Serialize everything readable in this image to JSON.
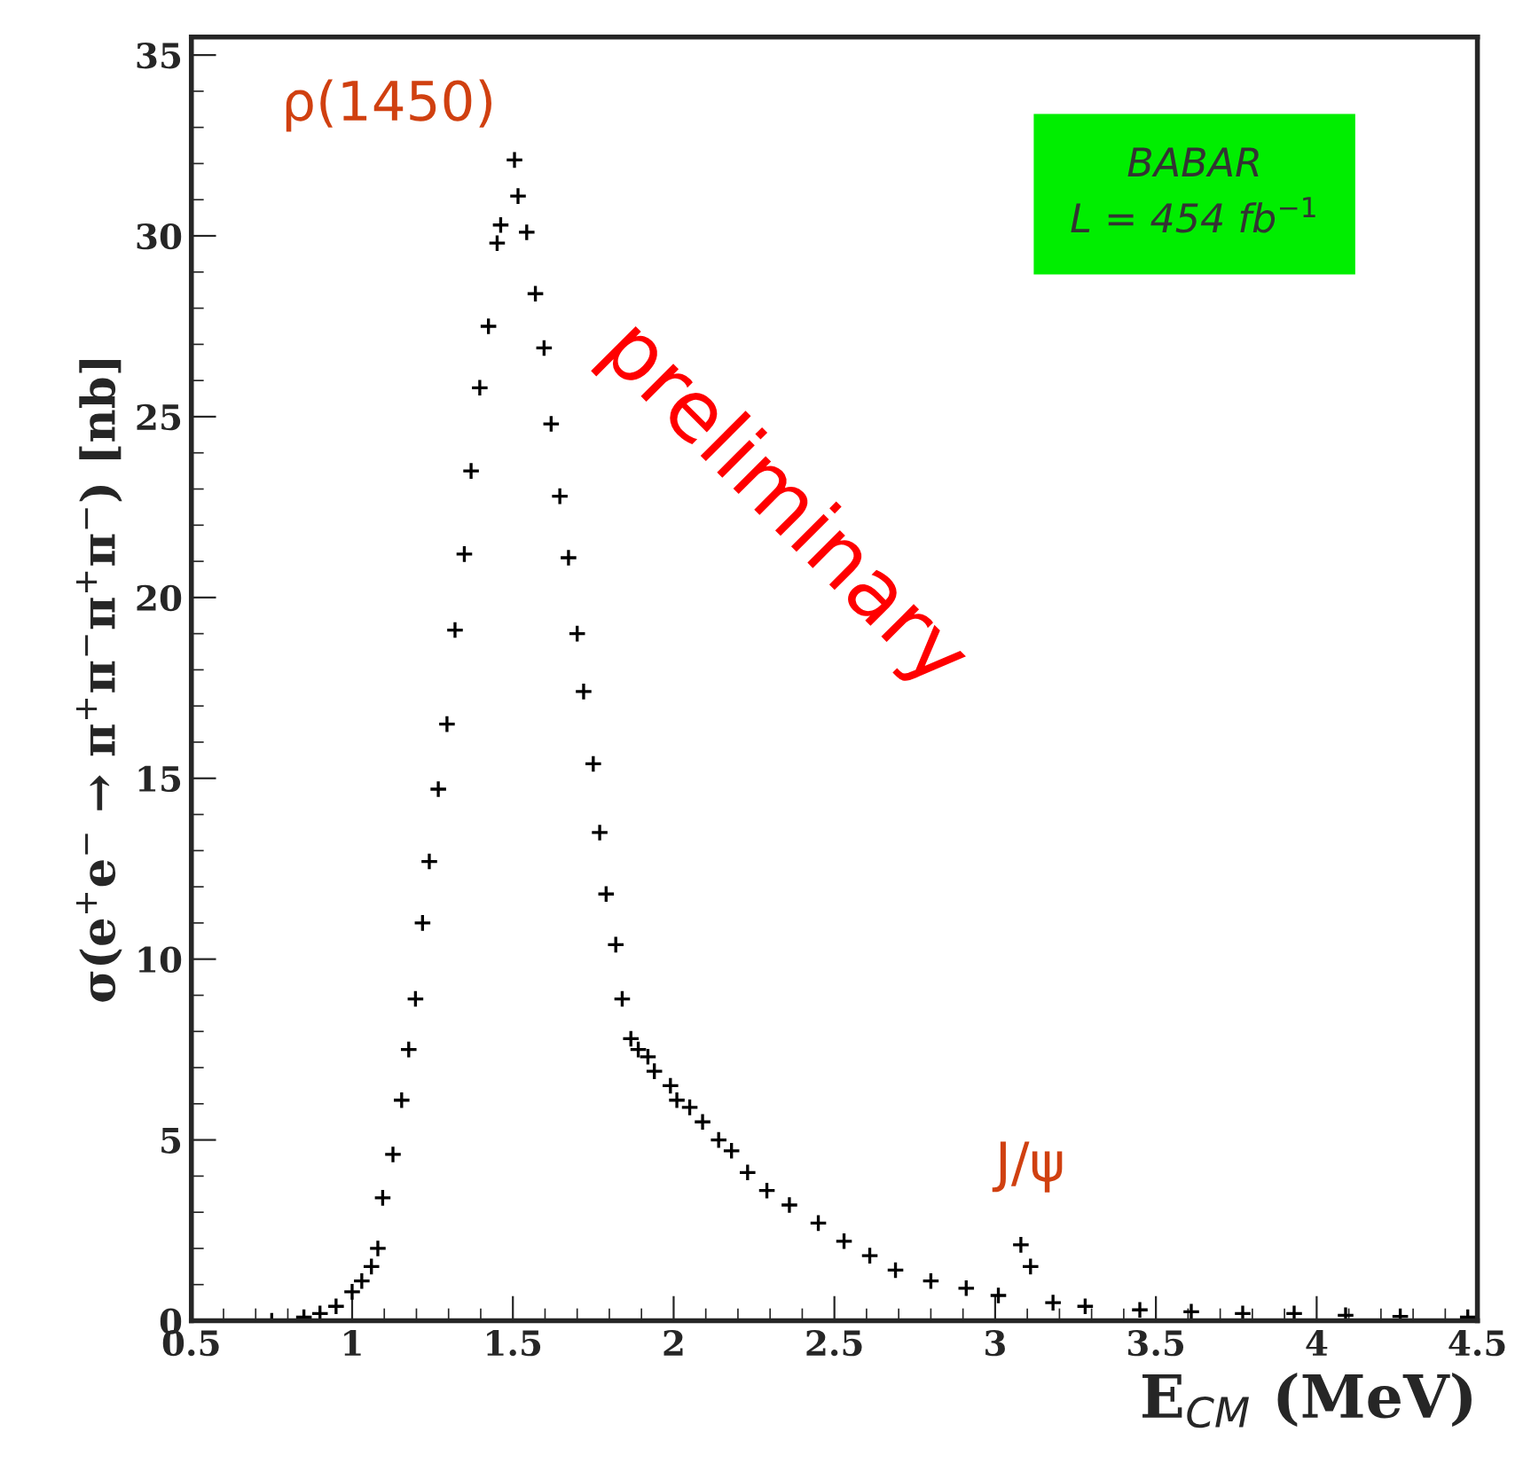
{
  "chart_data": {
    "type": "scatter",
    "xlabel": "E$_{CM}$ (MeV)",
    "ylabel": "σ(e$^{+}$e$^{−}$ → π$^{+}$π$^{−}$π$^{+}$π$^{−}$) [nb]",
    "x": [
      0.75,
      0.85,
      0.9,
      0.95,
      1.0,
      1.03,
      1.06,
      1.08,
      1.095,
      1.127,
      1.154,
      1.176,
      1.197,
      1.219,
      1.24,
      1.268,
      1.295,
      1.32,
      1.349,
      1.37,
      1.397,
      1.424,
      1.451,
      1.462,
      1.505,
      1.516,
      1.543,
      1.57,
      1.597,
      1.619,
      1.646,
      1.673,
      1.7,
      1.72,
      1.75,
      1.77,
      1.79,
      1.82,
      1.84,
      1.867,
      1.89,
      1.92,
      1.94,
      1.99,
      2.01,
      2.05,
      2.09,
      2.14,
      2.18,
      2.23,
      2.29,
      2.36,
      2.45,
      2.53,
      2.61,
      2.69,
      2.8,
      2.91,
      3.01,
      3.08,
      3.11,
      3.18,
      3.28,
      3.45,
      3.61,
      3.77,
      3.93,
      4.09,
      4.26,
      4.47
    ],
    "series": [
      {
        "color": "#000000",
        "values": [
          0.0,
          0.1,
          0.2,
          0.4,
          0.8,
          1.1,
          1.5,
          2.0,
          3.4,
          4.6,
          6.1,
          7.5,
          8.9,
          11.0,
          12.7,
          14.7,
          16.5,
          19.1,
          21.2,
          23.5,
          25.8,
          27.5,
          29.8,
          30.3,
          32.1,
          31.1,
          30.1,
          28.4,
          26.9,
          24.8,
          22.8,
          21.1,
          19.0,
          17.4,
          15.4,
          13.5,
          11.8,
          10.4,
          8.9,
          7.8,
          7.5,
          7.3,
          6.9,
          6.5,
          6.1,
          5.9,
          5.5,
          5.0,
          4.7,
          4.1,
          3.6,
          3.2,
          2.7,
          2.2,
          1.8,
          1.4,
          1.1,
          0.9,
          0.7,
          2.1,
          1.5,
          0.5,
          0.4,
          0.3,
          0.25,
          0.2,
          0.2,
          0.15,
          0.12,
          0.1
        ]
      }
    ],
    "marker": "cross",
    "xlim": [
      0.5,
      4.5
    ],
    "xticks": [
      0.5,
      1,
      1.5,
      2,
      2.5,
      3,
      3.5,
      4,
      4.5
    ],
    "ylim": [
      0,
      35.5
    ],
    "yticks": [
      0,
      5,
      10,
      15,
      20,
      25,
      30,
      35
    ],
    "annotations": [
      "ρ(1450)",
      "J/ψ",
      "BABAR\nL = 454 fb$^{−1}$",
      "preliminary"
    ],
    "grid": false,
    "legend": false
  }
}
